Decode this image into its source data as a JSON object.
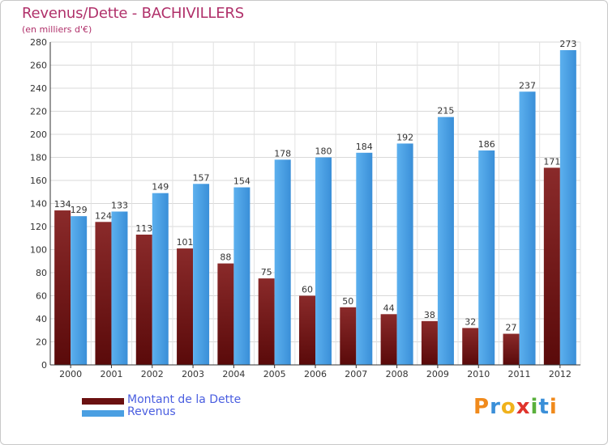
{
  "chart_data": {
    "type": "bar",
    "title": "Revenus/Dette - BACHIVILLERS",
    "subtitle": "(en milliers d'€)",
    "categories": [
      "2000",
      "2001",
      "2002",
      "2003",
      "2004",
      "2005",
      "2006",
      "2007",
      "2008",
      "2009",
      "2010",
      "2011",
      "2012"
    ],
    "series": [
      {
        "name": "Montant de la Dette",
        "color": "#7a1e1e",
        "values": [
          134,
          124,
          113,
          101,
          88,
          75,
          60,
          50,
          44,
          38,
          32,
          27,
          171
        ]
      },
      {
        "name": "Revenus",
        "color": "#4fa3e3",
        "values": [
          129,
          133,
          149,
          157,
          154,
          178,
          180,
          184,
          192,
          215,
          186,
          237,
          273
        ]
      }
    ],
    "ylim": [
      0,
      280
    ],
    "yticks": [
      0,
      20,
      40,
      60,
      80,
      100,
      120,
      140,
      160,
      180,
      200,
      220,
      240,
      260,
      280
    ],
    "grid": true,
    "legend_position": "bottom-left"
  },
  "logo": {
    "letters": [
      {
        "char": "P",
        "color": "#f08a1c"
      },
      {
        "char": "r",
        "color": "#3a8fd8"
      },
      {
        "char": "o",
        "color": "#f0b21c"
      },
      {
        "char": "x",
        "color": "#e0342c"
      },
      {
        "char": "i",
        "color": "#5ab03c"
      },
      {
        "char": "t",
        "color": "#3a8fd8"
      },
      {
        "char": "i",
        "color": "#f08a1c"
      }
    ]
  }
}
